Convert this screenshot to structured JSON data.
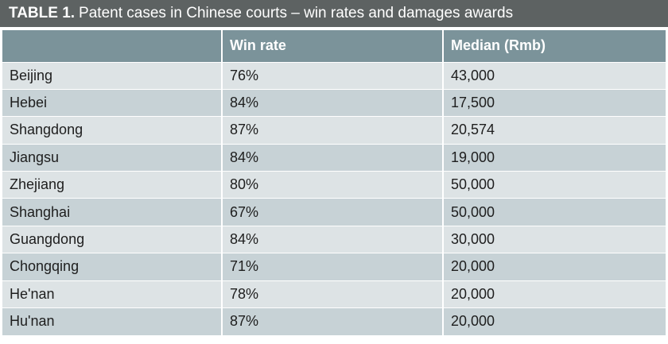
{
  "title": {
    "label": "TABLE 1.",
    "text": "Patent cases in Chinese courts – win rates and damages awards"
  },
  "table": {
    "columns": [
      "",
      "Win rate",
      "Median (Rmb)"
    ],
    "rows": [
      {
        "region": "Beijing",
        "win_rate": "76%",
        "median": "43,000"
      },
      {
        "region": "Hebei",
        "win_rate": "84%",
        "median": "17,500"
      },
      {
        "region": "Shangdong",
        "win_rate": "87%",
        "median": "20,574"
      },
      {
        "region": "Jiangsu",
        "win_rate": "84%",
        "median": "19,000"
      },
      {
        "region": "Zhejiang",
        "win_rate": "80%",
        "median": "50,000"
      },
      {
        "region": "Shanghai",
        "win_rate": "67%",
        "median": "50,000"
      },
      {
        "region": "Guangdong",
        "win_rate": "84%",
        "median": "30,000"
      },
      {
        "region": "Chongqing",
        "win_rate": "71%",
        "median": "20,000"
      },
      {
        "region": "He'nan",
        "win_rate": "78%",
        "median": "20,000"
      },
      {
        "region": "Hu'nan",
        "win_rate": "87%",
        "median": "20,000"
      }
    ]
  },
  "colors": {
    "title_bar": "#5d6262",
    "header_row": "#7b939a",
    "row_light": "#dde3e5",
    "row_dark": "#c7d2d6"
  }
}
